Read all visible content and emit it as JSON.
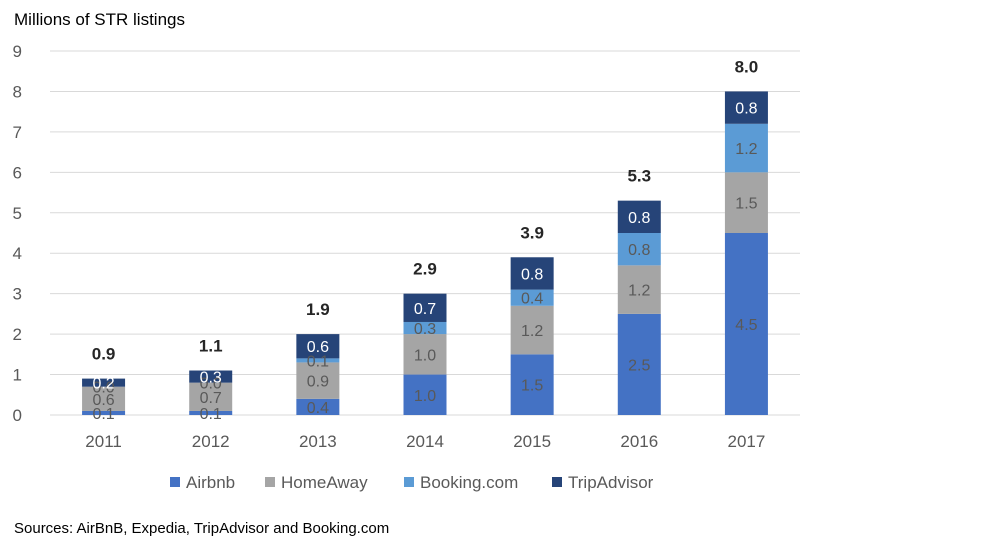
{
  "chart_data": {
    "type": "bar",
    "stacked": true,
    "ylabel": "Millions of STR listings",
    "categories": [
      "2011",
      "2012",
      "2013",
      "2014",
      "2015",
      "2016",
      "2017"
    ],
    "series": [
      {
        "name": "Airbnb",
        "color": "#4472C4",
        "values": [
          0.1,
          0.1,
          0.4,
          1.0,
          1.5,
          2.5,
          4.5
        ]
      },
      {
        "name": "HomeAway",
        "color": "#A5A5A5",
        "values": [
          0.6,
          0.7,
          0.9,
          1.0,
          1.2,
          1.2,
          1.5
        ]
      },
      {
        "name": "Booking.com",
        "color": "#5B9BD5",
        "values": [
          0.0,
          0.0,
          0.1,
          0.3,
          0.4,
          0.8,
          1.2
        ]
      },
      {
        "name": "TripAdvisor",
        "color": "#264478",
        "values": [
          0.2,
          0.3,
          0.6,
          0.7,
          0.8,
          0.8,
          0.8
        ]
      }
    ],
    "totals": [
      "0.9",
      "1.1",
      "1.9",
      "2.9",
      "3.9",
      "5.3",
      "8.0"
    ],
    "ylim": [
      0,
      9
    ],
    "yticks": [
      0,
      1,
      2,
      3,
      4,
      5,
      6,
      7,
      8,
      9
    ],
    "grid": true,
    "legend_position": "bottom",
    "label_colors": {
      "Airbnb": "#595959",
      "HomeAway": "#595959",
      "Booking.com": "#595959",
      "TripAdvisor": "#ffffff"
    }
  },
  "source_note": "Sources: AirBnB, Expedia, TripAdvisor and Booking.com"
}
